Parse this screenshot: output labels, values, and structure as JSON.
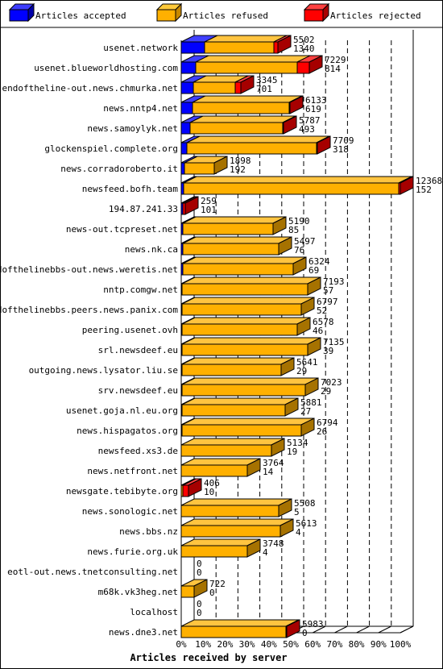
{
  "chart_data": {
    "type": "bar",
    "title": "Articles received by server",
    "xlabel": "Articles received by server",
    "legend_position": "top",
    "xlim": [
      0,
      100
    ],
    "x_unit": "%",
    "grid": true,
    "x_ticks": [
      "0%",
      "10%",
      "20%",
      "30%",
      "40%",
      "50%",
      "60%",
      "70%",
      "80%",
      "90%",
      "100%"
    ],
    "series": [
      {
        "name": "Articles accepted",
        "color": "#0000ff"
      },
      {
        "name": "Articles refused",
        "color": "#ffb000"
      },
      {
        "name": "Articles rejected",
        "color": "#ff0000"
      }
    ],
    "categories": [
      "usenet.network",
      "usenet.blueworldhosting.com",
      "endoftheline-out.news.chmurka.net",
      "news.nntp4.net",
      "news.samoylyk.net",
      "glockenspiel.complete.org",
      "news.corradoroberto.it",
      "newsfeed.bofh.team",
      "194.87.241.33",
      "news-out.tcpreset.net",
      "news.nk.ca",
      "endofthelinebbs-out.news.weretis.net",
      "nntp.comgw.net",
      "endofthelinebbs.peers.news.panix.com",
      "peering.usenet.ovh",
      "srl.newsdeef.eu",
      "outgoing.news.lysator.liu.se",
      "srv.newsdeef.eu",
      "usenet.goja.nl.eu.org",
      "news.hispagatos.org",
      "newsfeed.xs3.de",
      "news.netfront.net",
      "newsgate.tebibyte.org",
      "news.sonologic.net",
      "news.bbs.nz",
      "news.furie.org.uk",
      "eotl-out.news.tnetconsulting.net",
      "m68k.vk3heg.net",
      "localhost",
      "news.dne3.net"
    ],
    "offered": [
      5502,
      7229,
      3345,
      6133,
      5787,
      7709,
      1898,
      12368,
      259,
      5190,
      5497,
      6324,
      7193,
      6797,
      6578,
      7135,
      5641,
      7023,
      5881,
      6794,
      5134,
      3764,
      406,
      5508,
      5613,
      3748,
      0,
      722,
      0,
      5983
    ],
    "accepted": [
      1340,
      814,
      701,
      619,
      493,
      318,
      192,
      152,
      101,
      85,
      76,
      69,
      57,
      52,
      46,
      39,
      29,
      29,
      27,
      26,
      19,
      14,
      10,
      5,
      4,
      4,
      0,
      0,
      0,
      0
    ],
    "rejected": [
      250,
      700,
      300,
      60,
      60,
      50,
      20,
      80,
      250,
      20,
      20,
      20,
      20,
      20,
      20,
      20,
      20,
      20,
      20,
      20,
      20,
      20,
      300,
      20,
      20,
      20,
      0,
      0,
      0,
      60
    ],
    "value_labels_top": [
      "5502",
      "7229",
      "3345",
      "6133",
      "5787",
      "7709",
      "1898",
      "12368",
      "259",
      "5190",
      "5497",
      "6324",
      "7193",
      "6797",
      "6578",
      "7135",
      "5641",
      "7023",
      "5881",
      "6794",
      "5134",
      "3764",
      "406",
      "5508",
      "5613",
      "3748",
      "0",
      "722",
      "0",
      "5983"
    ],
    "value_labels_bottom": [
      "1340",
      "814",
      "701",
      "619",
      "493",
      "318",
      "192",
      "152",
      "101",
      "85",
      "76",
      "69",
      "57",
      "52",
      "46",
      "39",
      "29",
      "29",
      "27",
      "26",
      "19",
      "14",
      "10",
      "5",
      "4",
      "4",
      "0",
      "0",
      "0",
      "0"
    ]
  }
}
